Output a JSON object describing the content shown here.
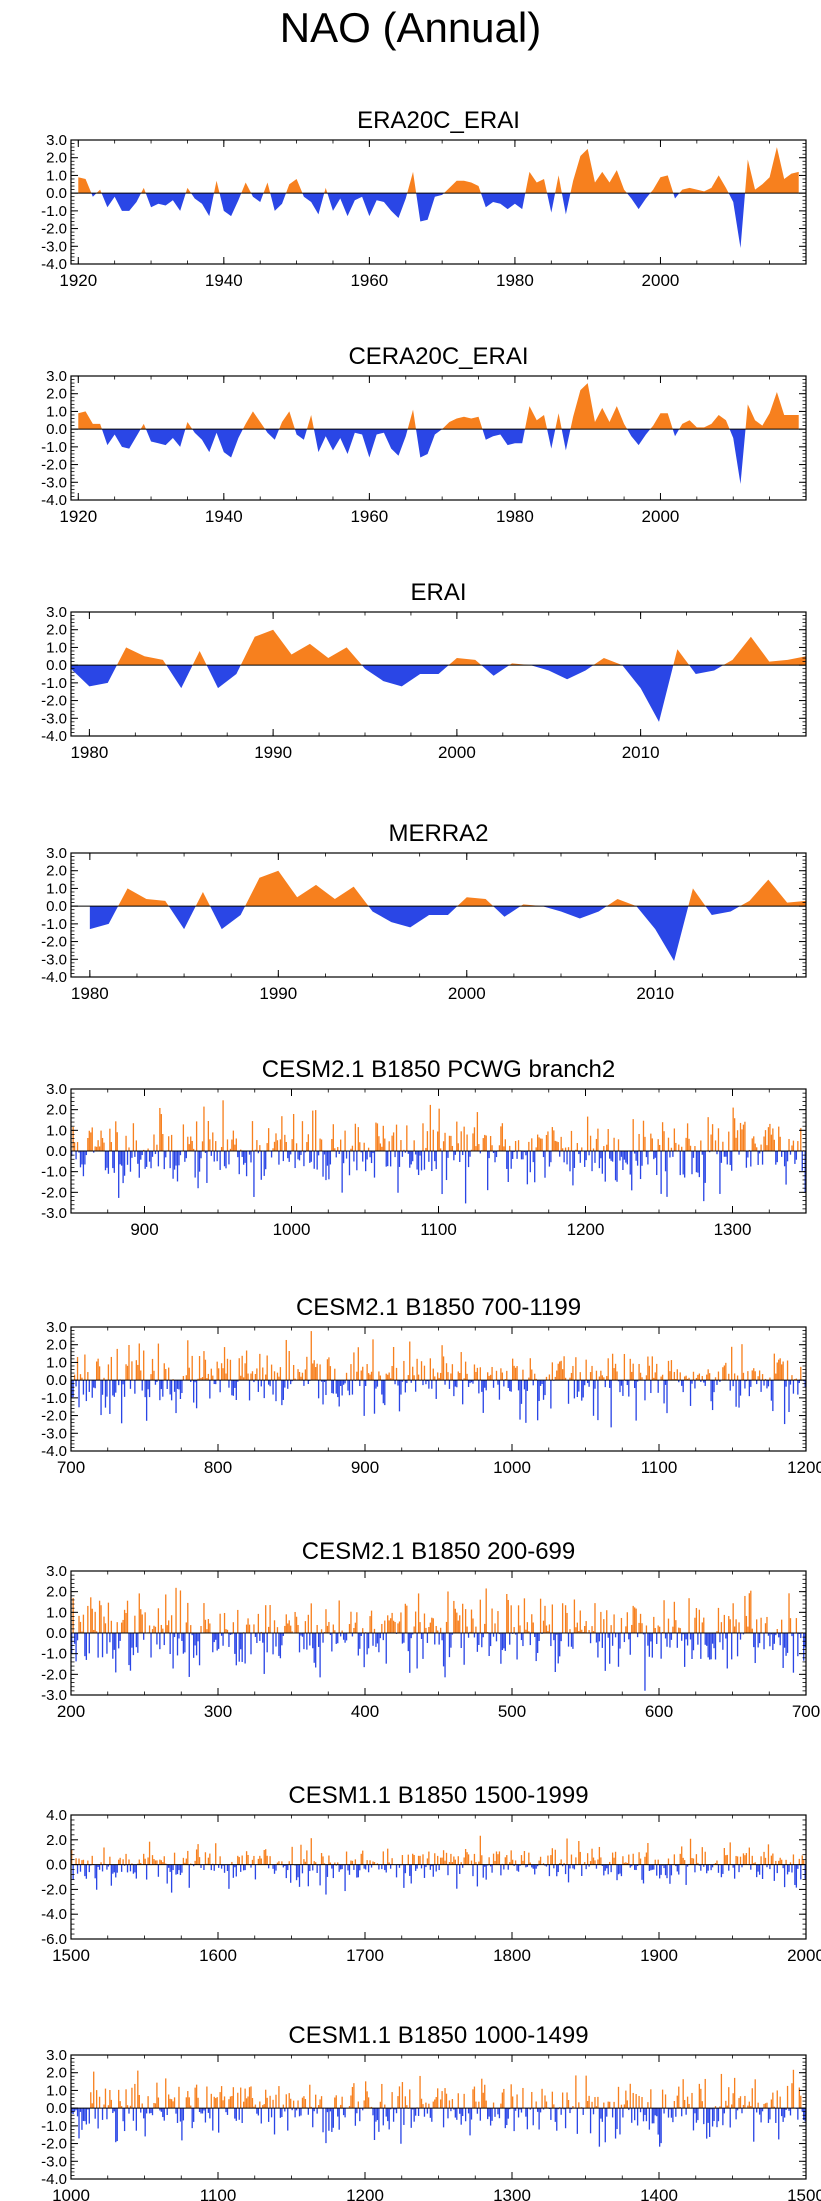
{
  "page_title": "NAO (Annual)",
  "colors": {
    "positive": "#f7801e",
    "negative": "#2a46e6",
    "zero_line": "#000000"
  },
  "chart_data": [
    {
      "type": "area",
      "title": "ERA20C_ERAI",
      "ylim": [
        -4.0,
        3.0
      ],
      "yticks": [
        "3.0",
        "2.0",
        "1.0",
        "0.0",
        "-1.0",
        "-2.0",
        "-3.0",
        "-4.0"
      ],
      "xlim": [
        1919,
        2020
      ],
      "xticks": [
        1920,
        1940,
        1960,
        1980,
        2000
      ],
      "x_start": 1920,
      "values": [
        0.9,
        0.8,
        -0.2,
        0.2,
        -0.8,
        -0.2,
        -1.0,
        -1.0,
        -0.5,
        0.3,
        -0.8,
        -0.6,
        -0.7,
        -0.4,
        -1.0,
        0.3,
        -0.3,
        -0.6,
        -1.3,
        0.7,
        -1.0,
        -1.3,
        -0.4,
        0.6,
        -0.2,
        -0.5,
        0.6,
        -1.0,
        -0.6,
        0.5,
        0.8,
        -0.2,
        -0.5,
        -1.2,
        0.3,
        -1.0,
        -0.3,
        -1.3,
        -0.4,
        -0.2,
        -1.3,
        -0.4,
        -0.5,
        -1.0,
        -1.4,
        -0.3,
        1.2,
        -1.6,
        -1.5,
        -0.2,
        -0.1,
        0.3,
        0.7,
        0.7,
        0.6,
        0.4,
        -0.8,
        -0.5,
        -0.6,
        -0.9,
        -0.6,
        -0.9,
        1.2,
        0.6,
        0.8,
        -1.1,
        1.0,
        -1.2,
        0.7,
        2.1,
        2.5,
        0.6,
        1.2,
        0.6,
        1.3,
        0.2,
        -0.3,
        -0.9,
        -0.3,
        0.2,
        0.9,
        1.0,
        -0.3,
        0.2,
        0.3,
        0.2,
        0.1,
        0.3,
        1.0,
        0.3,
        -0.5,
        -3.1,
        1.9,
        0.2,
        0.5,
        0.9,
        2.6,
        0.8,
        1.1,
        1.2
      ]
    },
    {
      "type": "area",
      "title": "CERA20C_ERAI",
      "ylim": [
        -4.0,
        3.0
      ],
      "yticks": [
        "3.0",
        "2.0",
        "1.0",
        "0.0",
        "-1.0",
        "-2.0",
        "-3.0",
        "-4.0"
      ],
      "xlim": [
        1919,
        2020
      ],
      "xticks": [
        1920,
        1940,
        1960,
        1980,
        2000
      ],
      "x_start": 1920,
      "values": [
        0.9,
        1.0,
        0.3,
        0.3,
        -0.9,
        -0.3,
        -1.0,
        -1.1,
        -0.4,
        0.3,
        -0.7,
        -0.8,
        -0.9,
        -0.5,
        -1.0,
        0.4,
        -0.2,
        -0.6,
        -1.3,
        -0.2,
        -1.3,
        -1.6,
        -0.5,
        0.3,
        1.0,
        0.4,
        -0.2,
        -0.6,
        0.4,
        1.0,
        -0.3,
        -0.6,
        0.8,
        -1.3,
        -0.4,
        -1.2,
        -0.5,
        -1.4,
        -0.2,
        -0.3,
        -1.6,
        -0.3,
        -0.2,
        -1.1,
        -1.5,
        -0.4,
        1.1,
        -1.6,
        -1.4,
        -0.3,
        0.0,
        0.4,
        0.6,
        0.7,
        0.6,
        0.7,
        -0.6,
        -0.4,
        -0.3,
        -0.9,
        -0.8,
        -0.8,
        1.3,
        0.5,
        0.8,
        -1.1,
        0.9,
        -1.2,
        0.7,
        2.2,
        2.6,
        0.4,
        1.2,
        0.4,
        1.3,
        0.3,
        -0.4,
        -0.9,
        -0.3,
        0.2,
        0.9,
        0.9,
        -0.4,
        0.3,
        0.5,
        0.1,
        0.1,
        0.3,
        0.8,
        0.5,
        -0.5,
        -3.1,
        1.4,
        0.5,
        0.2,
        0.9,
        2.1,
        0.8,
        0.8,
        0.8
      ]
    },
    {
      "type": "area",
      "title": "ERAI",
      "ylim": [
        -4.0,
        3.0
      ],
      "yticks": [
        "3.0",
        "2.0",
        "1.0",
        "0.0",
        "-1.0",
        "-2.0",
        "-3.0",
        "-4.0"
      ],
      "xlim": [
        1979,
        2019
      ],
      "xticks": [
        1980,
        1990,
        2000,
        2010
      ],
      "x_start": 1979,
      "values": [
        -0.2,
        -1.2,
        -1.0,
        1.0,
        0.5,
        0.3,
        -1.3,
        0.8,
        -1.3,
        -0.5,
        1.6,
        2.0,
        0.6,
        1.2,
        0.4,
        1.0,
        -0.2,
        -0.9,
        -1.2,
        -0.5,
        -0.5,
        0.4,
        0.3,
        -0.6,
        0.1,
        0.0,
        -0.3,
        -0.8,
        -0.3,
        0.4,
        0.0,
        -1.3,
        -3.2,
        0.9,
        -0.5,
        -0.3,
        0.3,
        1.6,
        0.2,
        0.3,
        0.5
      ]
    },
    {
      "type": "area",
      "title": "MERRA2",
      "ylim": [
        -4.0,
        3.0
      ],
      "yticks": [
        "3.0",
        "2.0",
        "1.0",
        "0.0",
        "-1.0",
        "-2.0",
        "-3.0",
        "-4.0"
      ],
      "xlim": [
        1979,
        2018
      ],
      "xticks": [
        1980,
        1990,
        2000,
        2010
      ],
      "x_start": 1980,
      "values": [
        -1.3,
        -1.0,
        1.0,
        0.4,
        0.3,
        -1.3,
        0.8,
        -1.3,
        -0.5,
        1.6,
        2.0,
        0.5,
        1.2,
        0.4,
        1.1,
        -0.3,
        -0.9,
        -1.2,
        -0.5,
        -0.5,
        0.5,
        0.4,
        -0.6,
        0.1,
        0.0,
        -0.3,
        -0.7,
        -0.3,
        0.4,
        0.0,
        -1.3,
        -3.1,
        1.0,
        -0.5,
        -0.3,
        0.3,
        1.5,
        0.2,
        0.3
      ]
    },
    {
      "type": "bar",
      "title": "CESM2.1 B1850 PCWG branch2",
      "ylim": [
        -3.0,
        3.0
      ],
      "yticks": [
        "3.0",
        "2.0",
        "1.0",
        "0.0",
        "-1.0",
        "-2.0",
        "-3.0"
      ],
      "xlim": [
        850,
        1350
      ],
      "xticks": [
        900,
        1000,
        1100,
        1200,
        1300
      ],
      "x_start": 850,
      "n_years": 500,
      "seed": 11,
      "sigma": 0.9
    },
    {
      "type": "bar",
      "title": "CESM2.1 B1850 700-1199",
      "ylim": [
        -4.0,
        3.0
      ],
      "yticks": [
        "3.0",
        "2.0",
        "1.0",
        "0.0",
        "-1.0",
        "-2.0",
        "-3.0",
        "-4.0"
      ],
      "xlim": [
        700,
        1200
      ],
      "xticks": [
        700,
        800,
        900,
        1000,
        1100,
        1200
      ],
      "x_start": 700,
      "n_years": 500,
      "seed": 23,
      "sigma": 0.9
    },
    {
      "type": "bar",
      "title": "CESM2.1 B1850 200-699",
      "ylim": [
        -3.0,
        3.0
      ],
      "yticks": [
        "3.0",
        "2.0",
        "1.0",
        "0.0",
        "-1.0",
        "-2.0",
        "-3.0"
      ],
      "xlim": [
        200,
        700
      ],
      "xticks": [
        200,
        300,
        400,
        500,
        600,
        700
      ],
      "x_start": 200,
      "n_years": 500,
      "seed": 37,
      "sigma": 0.9
    },
    {
      "type": "bar",
      "title": "CESM1.1 B1850 1500-1999",
      "ylim": [
        -6.0,
        4.0
      ],
      "yticks": [
        "4.0",
        "2.0",
        "0.0",
        "-2.0",
        "-4.0",
        "-6.0"
      ],
      "xlim": [
        1500,
        2000
      ],
      "xticks": [
        1500,
        1600,
        1700,
        1800,
        1900,
        2000
      ],
      "x_start": 1500,
      "n_years": 500,
      "seed": 53,
      "sigma": 0.85
    },
    {
      "type": "bar",
      "title": "CESM1.1 B1850 1000-1499",
      "ylim": [
        -4.0,
        3.0
      ],
      "yticks": [
        "3.0",
        "2.0",
        "1.0",
        "0.0",
        "-1.0",
        "-2.0",
        "-3.0",
        "-4.0"
      ],
      "xlim": [
        1000,
        1500
      ],
      "xticks": [
        1000,
        1100,
        1200,
        1300,
        1400,
        1500
      ],
      "x_start": 1000,
      "n_years": 500,
      "seed": 71,
      "sigma": 0.9
    }
  ]
}
